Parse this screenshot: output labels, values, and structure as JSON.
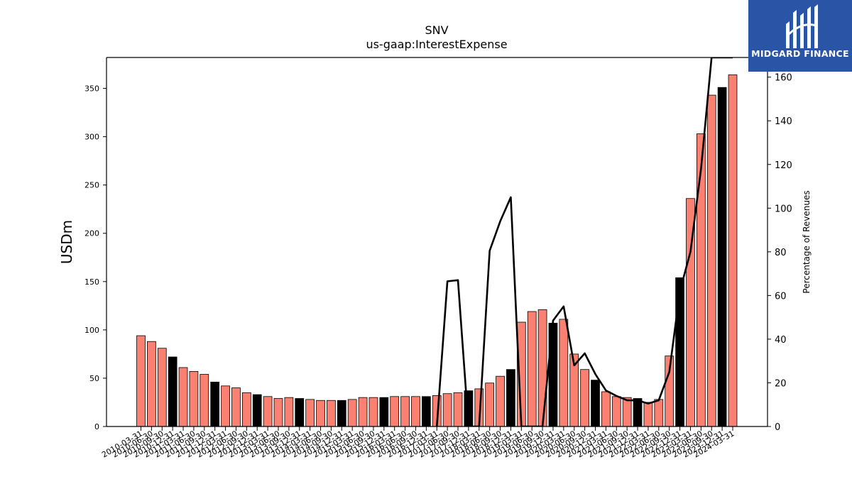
{
  "chart_data": {
    "type": "bar",
    "title": "SNV",
    "subtitle": "us-gaap:InterestExpense",
    "ylabel": "USDm",
    "y2label": "Percentage of Revenues",
    "ylim": [
      0,
      382
    ],
    "y2lim": [
      0,
      169
    ],
    "yticks": [
      0,
      50,
      100,
      150,
      200,
      250,
      300,
      350
    ],
    "y2ticks": [
      0,
      20,
      40,
      60,
      80,
      100,
      120,
      140,
      160
    ],
    "categories": [
      "2010-03-31",
      "2010-06-30",
      "2010-09-30",
      "2010-12-31",
      "2011-03-31",
      "2011-06-30",
      "2011-09-30",
      "2011-12-31",
      "2012-03-31",
      "2012-06-30",
      "2012-09-30",
      "2012-12-31",
      "2013-03-31",
      "2013-06-30",
      "2013-09-30",
      "2013-12-31",
      "2014-03-31",
      "2014-06-30",
      "2014-09-30",
      "2014-12-31",
      "2015-03-31",
      "2015-06-30",
      "2015-09-30",
      "2015-12-31",
      "2016-03-31",
      "2016-06-30",
      "2016-09-30",
      "2016-12-31",
      "2017-03-31",
      "2017-06-30",
      "2017-09-30",
      "2017-12-31",
      "2018-03-31",
      "2018-06-30",
      "2018-09-30",
      "2018-12-31",
      "2019-03-31",
      "2019-06-30",
      "2019-09-30",
      "2019-12-31",
      "2020-03-31",
      "2020-06-30",
      "2020-09-30",
      "2020-12-31",
      "2021-03-31",
      "2021-06-30",
      "2021-09-30",
      "2021-12-31",
      "2022-03-31",
      "2022-06-30",
      "2022-09-30",
      "2022-12-31",
      "2023-03-31",
      "2023-06-30",
      "2023-09-30",
      "2023-12-31",
      "2024-03-31"
    ],
    "series": [
      {
        "kind": "bar",
        "axis": "left",
        "values": [
          94,
          88,
          81,
          72,
          61,
          57,
          54,
          46,
          42,
          40,
          35,
          33,
          31,
          29,
          30,
          29,
          28,
          27,
          27,
          27,
          28,
          30,
          30,
          30,
          31,
          31,
          31,
          31,
          32,
          34,
          35,
          37,
          39,
          45,
          52,
          59,
          108,
          119,
          121,
          107,
          111,
          75,
          59,
          48,
          36,
          31,
          30,
          29,
          25,
          28,
          73,
          154,
          236,
          303,
          343,
          351,
          364
        ],
        "colors": [
          "salmon",
          "black"
        ],
        "color_values": [
          "#fa8072",
          "#000000"
        ],
        "q4_highlight": true
      },
      {
        "kind": "line",
        "axis": "right",
        "color": "#000000",
        "values": [
          null,
          null,
          null,
          null,
          null,
          null,
          null,
          null,
          null,
          null,
          null,
          null,
          null,
          null,
          null,
          null,
          null,
          null,
          null,
          null,
          null,
          null,
          null,
          null,
          null,
          null,
          null,
          null,
          0,
          66.5,
          67,
          0,
          0,
          80.5,
          94,
          105,
          0,
          0,
          0,
          48.5,
          55,
          28,
          33.5,
          24,
          16.5,
          14,
          12,
          12,
          10.5,
          12,
          25,
          62,
          80,
          118,
          169,
          169,
          169
        ]
      }
    ],
    "grid": false
  },
  "logo": {
    "text": "MIDGARD FINANCE"
  }
}
